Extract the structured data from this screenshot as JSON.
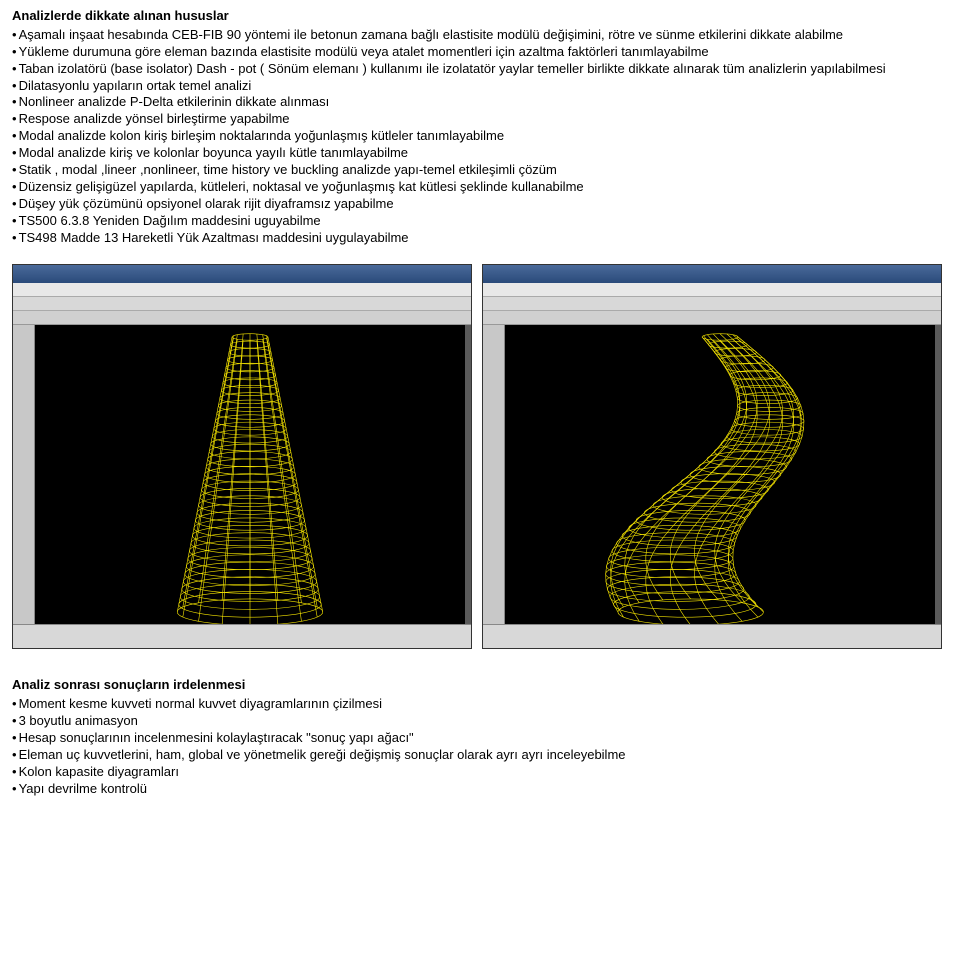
{
  "section1": {
    "title": "Analizlerde dikkate alınan hususlar",
    "bullets": [
      "Aşamalı inşaat hesabında CEB-FIB 90 yöntemi ile betonun zamana bağlı elastisite modülü değişimini, rötre ve sünme etkilerini dikkate alabilme",
      "Yükleme durumuna göre eleman bazında elastisite modülü veya atalet momentleri için azaltma faktörleri tanımlayabilme",
      "Taban izolatörü (base isolator) Dash - pot ( Sönüm elemanı ) kullanımı ile izolatatör yaylar temeller birlikte dikkate alınarak tüm analizlerin yapılabilmesi",
      "Dilatasyonlu yapıların ortak temel analizi",
      "Nonlineer analizde P-Delta etkilerinin dikkate alınması",
      "Respose analizde yönsel birleştirme yapabilme",
      "Modal analizde kolon kiriş birleşim noktalarında yoğunlaşmış kütleler tanımlayabilme",
      "Modal analizde kiriş ve kolonlar boyunca yayılı kütle tanımlayabilme",
      "Statik , modal ,lineer ,nonlineer, time history ve buckling analizde yapı-temel etkileşimli çözüm",
      "Düzensiz gelişigüzel yapılarda, kütleleri, noktasal ve yoğunlaşmış kat kütlesi şeklinde kullanabilme",
      "Düşey yük çözümünü opsiyonel olarak rijit diyaframsız yapabilme",
      "TS500 6.3.8 Yeniden Dağılım maddesini uguyabilme",
      "TS498 Madde 13 Hareketli Yük Azaltması maddesini uygulayabilme"
    ]
  },
  "section2": {
    "title": "Analiz sonrası sonuçların irdelenmesi",
    "bullets": [
      "Moment kesme kuvveti normal kuvvet diyagramlarının çizilmesi",
      "3 boyutlu animasyon",
      "Hesap sonuçlarının incelenmesini kolaylaştıracak \"sonuç yapı ağacı\"",
      "Eleman uç kuvvetlerini, ham, global ve yönetmelik gereği değişmiş sonuçlar olarak ayrı ayrı inceleyebilme",
      "Kolon kapasite diyagramları",
      "Yapı devrilme kontrolü"
    ]
  },
  "screenshots": {
    "shot1": {
      "wire_color": "#f5e400",
      "bg_color": "#000000",
      "bend": 0
    },
    "shot2": {
      "wire_color": "#f5e400",
      "bg_color": "#000000",
      "bend": 1
    }
  }
}
